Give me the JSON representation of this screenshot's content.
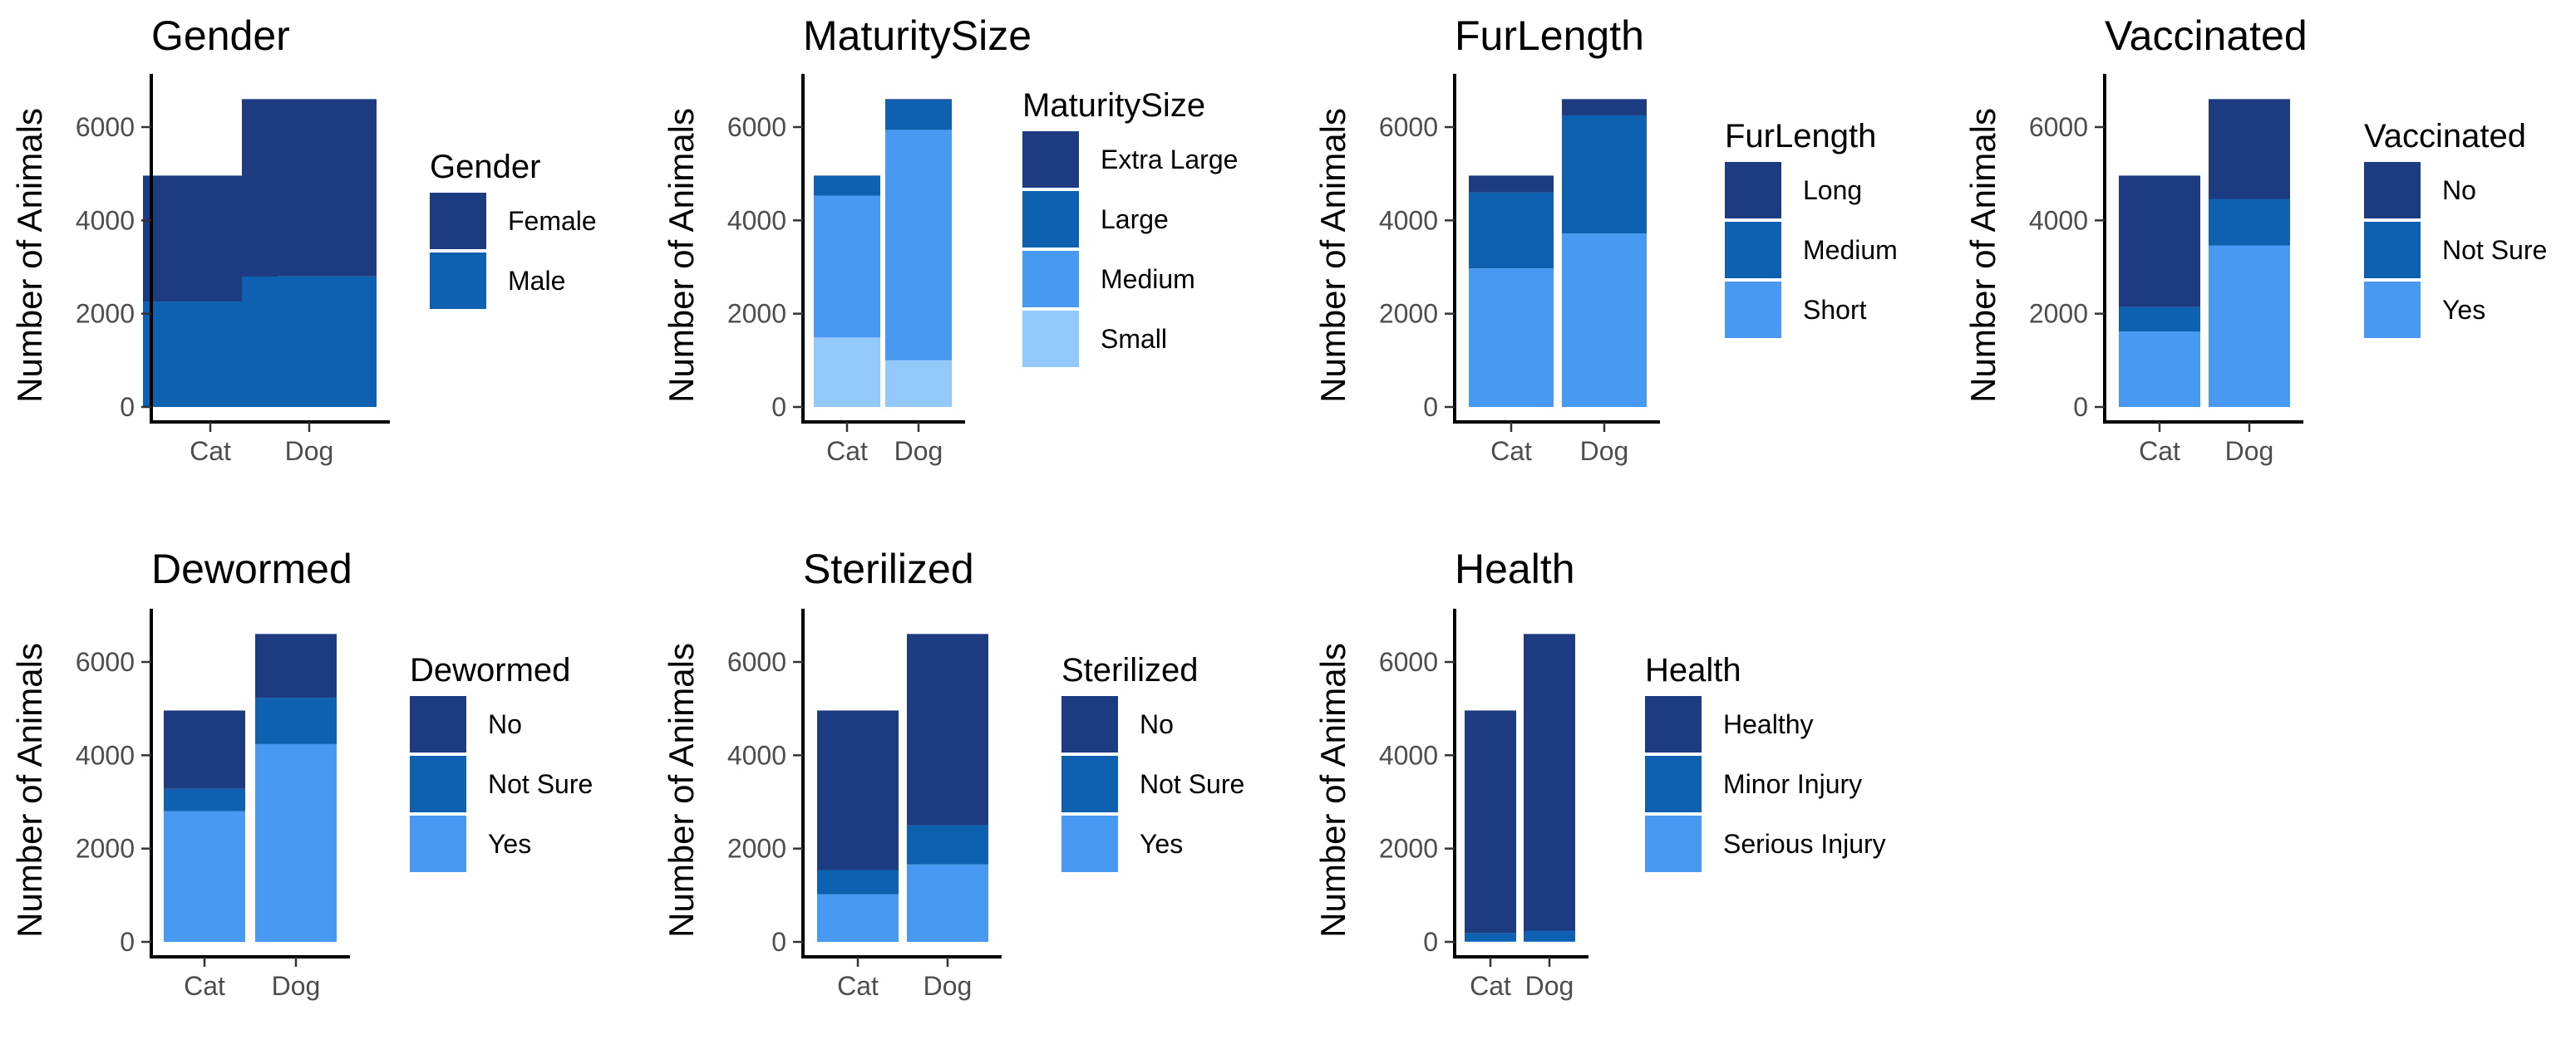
{
  "colors": {
    "shade1": "#1c3b80",
    "shade2": "#0e60b0",
    "shade3": "#4799f2",
    "shade4": "#92c8fa"
  },
  "chart_data": [
    {
      "type": "bar",
      "stacked": true,
      "title": "Gender",
      "ylabel": "Number of Animals",
      "xlabel": "",
      "categories": [
        "Cat",
        "Dog"
      ],
      "ylim": [
        0,
        7000
      ],
      "yticks": [
        0,
        2000,
        4000,
        6000
      ],
      "legend_title": "Gender",
      "legend_position": "right",
      "series": [
        {
          "name": "Female",
          "color": "#1c3b80",
          "values": [
            2700,
            3800
          ]
        },
        {
          "name": "Male",
          "color": "#0e60b0",
          "values": [
            2260,
            2800
          ]
        }
      ]
    },
    {
      "type": "bar",
      "stacked": true,
      "title": "MaturitySize",
      "ylabel": "Number of Animals",
      "xlabel": "",
      "categories": [
        "Cat",
        "Dog"
      ],
      "ylim": [
        0,
        7000
      ],
      "yticks": [
        0,
        2000,
        4000,
        6000
      ],
      "legend_title": "MaturitySize",
      "legend_position": "right",
      "series": [
        {
          "name": "Extra Large",
          "color": "#1c3b80",
          "values": [
            10,
            20
          ]
        },
        {
          "name": "Large",
          "color": "#0e60b0",
          "values": [
            420,
            640
          ]
        },
        {
          "name": "Medium",
          "color": "#4799f2",
          "values": [
            3040,
            4940
          ]
        },
        {
          "name": "Small",
          "color": "#92c8fa",
          "values": [
            1490,
            1000
          ]
        }
      ]
    },
    {
      "type": "bar",
      "stacked": true,
      "title": "FurLength",
      "ylabel": "Number of Animals",
      "xlabel": "",
      "categories": [
        "Cat",
        "Dog"
      ],
      "ylim": [
        0,
        7000
      ],
      "yticks": [
        0,
        2000,
        4000,
        6000
      ],
      "legend_title": "FurLength",
      "legend_position": "right",
      "series": [
        {
          "name": "Long",
          "color": "#1c3b80",
          "values": [
            360,
            350
          ]
        },
        {
          "name": "Medium",
          "color": "#0e60b0",
          "values": [
            1630,
            2530
          ]
        },
        {
          "name": "Short",
          "color": "#4799f2",
          "values": [
            2970,
            3720
          ]
        }
      ]
    },
    {
      "type": "bar",
      "stacked": true,
      "title": "Vaccinated",
      "ylabel": "Number of Animals",
      "xlabel": "",
      "categories": [
        "Cat",
        "Dog"
      ],
      "ylim": [
        0,
        7000
      ],
      "yticks": [
        0,
        2000,
        4000,
        6000
      ],
      "legend_title": "Vaccinated",
      "legend_position": "right",
      "series": [
        {
          "name": "No",
          "color": "#1c3b80",
          "values": [
            2820,
            2140
          ]
        },
        {
          "name": "Not Sure",
          "color": "#0e60b0",
          "values": [
            520,
            1000
          ]
        },
        {
          "name": "Yes",
          "color": "#4799f2",
          "values": [
            1620,
            3460
          ]
        }
      ]
    },
    {
      "type": "bar",
      "stacked": true,
      "title": "Dewormed",
      "ylabel": "Number of Animals",
      "xlabel": "",
      "categories": [
        "Cat",
        "Dog"
      ],
      "ylim": [
        0,
        7000
      ],
      "yticks": [
        0,
        2000,
        4000,
        6000
      ],
      "legend_title": "Dewormed",
      "legend_position": "right",
      "series": [
        {
          "name": "No",
          "color": "#1c3b80",
          "values": [
            1680,
            1370
          ]
        },
        {
          "name": "Not Sure",
          "color": "#0e60b0",
          "values": [
            480,
            990
          ]
        },
        {
          "name": "Yes",
          "color": "#4799f2",
          "values": [
            2800,
            4240
          ]
        }
      ]
    },
    {
      "type": "bar",
      "stacked": true,
      "title": "Sterilized",
      "ylabel": "Number of Animals",
      "xlabel": "",
      "categories": [
        "Cat",
        "Dog"
      ],
      "ylim": [
        0,
        7000
      ],
      "yticks": [
        0,
        2000,
        4000,
        6000
      ],
      "legend_title": "Sterilized",
      "legend_position": "right",
      "series": [
        {
          "name": "No",
          "color": "#1c3b80",
          "values": [
            3420,
            4100
          ]
        },
        {
          "name": "Not Sure",
          "color": "#0e60b0",
          "values": [
            520,
            840
          ]
        },
        {
          "name": "Yes",
          "color": "#4799f2",
          "values": [
            1020,
            1660
          ]
        }
      ]
    },
    {
      "type": "bar",
      "stacked": true,
      "title": "Health",
      "ylabel": "Number of Animals",
      "xlabel": "",
      "categories": [
        "Cat",
        "Dog"
      ],
      "ylim": [
        0,
        7000
      ],
      "yticks": [
        0,
        2000,
        4000,
        6000
      ],
      "legend_title": "Health",
      "legend_position": "right",
      "series": [
        {
          "name": "Healthy",
          "color": "#1c3b80",
          "values": [
            4770,
            6360
          ]
        },
        {
          "name": "Minor Injury",
          "color": "#0e60b0",
          "values": [
            180,
            230
          ]
        },
        {
          "name": "Serious Injury",
          "color": "#4799f2",
          "values": [
            10,
            10
          ]
        }
      ]
    }
  ]
}
